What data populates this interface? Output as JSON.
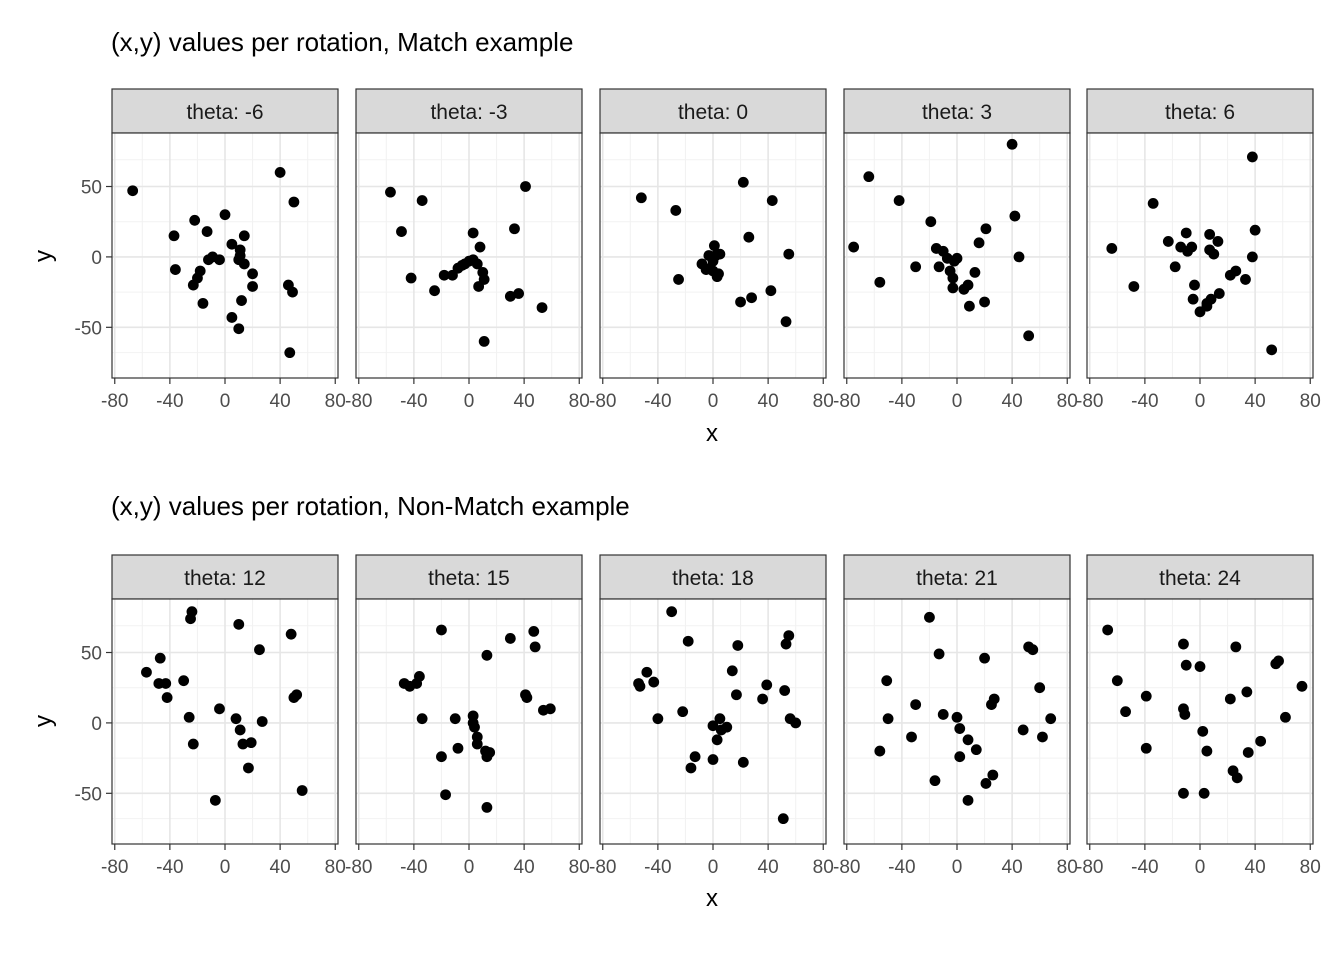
{
  "chart_data": [
    {
      "type": "scatter",
      "title": "(x,y) values per rotation, Match example",
      "xlabel": "x",
      "ylabel": "y",
      "xlim": [
        -82,
        82
      ],
      "ylim": [
        -86,
        88
      ],
      "x_ticks": [
        -80,
        -40,
        0,
        40,
        80
      ],
      "x_tick_labels": [
        "-80",
        "-40",
        "0",
        "40",
        "80"
      ],
      "y_ticks": [
        -50,
        0,
        50
      ],
      "y_tick_labels": [
        "-50",
        "0",
        "50"
      ],
      "grid": true,
      "panels": [
        {
          "label": "theta: -6",
          "points": [
            [
              -67,
              47
            ],
            [
              40,
              60
            ],
            [
              -37,
              15
            ],
            [
              -22,
              26
            ],
            [
              0,
              30
            ],
            [
              50,
              39
            ],
            [
              -13,
              18
            ],
            [
              -36,
              -9
            ],
            [
              -18,
              -10
            ],
            [
              -20,
              -15
            ],
            [
              -23,
              -20
            ],
            [
              -12,
              -2
            ],
            [
              -9,
              0
            ],
            [
              -4,
              -2
            ],
            [
              5,
              9
            ],
            [
              11,
              5
            ],
            [
              11,
              1
            ],
            [
              10,
              -2
            ],
            [
              14,
              15
            ],
            [
              14,
              -5
            ],
            [
              20,
              -12
            ],
            [
              20,
              -21
            ],
            [
              -16,
              -33
            ],
            [
              12,
              -31
            ],
            [
              5,
              -43
            ],
            [
              10,
              -51
            ],
            [
              46,
              -20
            ],
            [
              49,
              -25
            ],
            [
              47,
              -68
            ]
          ]
        },
        {
          "label": "theta: -3",
          "points": [
            [
              -57,
              46
            ],
            [
              -34,
              40
            ],
            [
              -49,
              18
            ],
            [
              -42,
              -15
            ],
            [
              41,
              50
            ],
            [
              33,
              20
            ],
            [
              3,
              17
            ],
            [
              -25,
              -24
            ],
            [
              -18,
              -13
            ],
            [
              -12,
              -13
            ],
            [
              -8,
              -8
            ],
            [
              -5,
              -6
            ],
            [
              -3,
              -5
            ],
            [
              0,
              -3
            ],
            [
              3,
              -2
            ],
            [
              6,
              -5
            ],
            [
              8,
              7
            ],
            [
              10,
              -11
            ],
            [
              11,
              -16
            ],
            [
              7,
              -21
            ],
            [
              30,
              -28
            ],
            [
              36,
              -26
            ],
            [
              53,
              -36
            ],
            [
              11,
              -60
            ]
          ]
        },
        {
          "label": "theta: 0",
          "points": [
            [
              -52,
              42
            ],
            [
              -27,
              33
            ],
            [
              22,
              53
            ],
            [
              43,
              40
            ],
            [
              26,
              14
            ],
            [
              55,
              2
            ],
            [
              -25,
              -16
            ],
            [
              -8,
              -5
            ],
            [
              -5,
              -9
            ],
            [
              -3,
              1
            ],
            [
              0,
              -3
            ],
            [
              1,
              8
            ],
            [
              2,
              1
            ],
            [
              5,
              2
            ],
            [
              4,
              -12
            ],
            [
              3,
              -14
            ],
            [
              0,
              -10
            ],
            [
              -2,
              -8
            ],
            [
              20,
              -32
            ],
            [
              28,
              -29
            ],
            [
              42,
              -24
            ],
            [
              53,
              -46
            ]
          ]
        },
        {
          "label": "theta: 3",
          "points": [
            [
              -64,
              57
            ],
            [
              40,
              80
            ],
            [
              -42,
              40
            ],
            [
              42,
              29
            ],
            [
              -75,
              7
            ],
            [
              -56,
              -18
            ],
            [
              -19,
              25
            ],
            [
              -15,
              6
            ],
            [
              -10,
              4
            ],
            [
              -13,
              -7
            ],
            [
              -30,
              -7
            ],
            [
              -7,
              -1
            ],
            [
              -5,
              -10
            ],
            [
              -2,
              -3
            ],
            [
              0,
              -1
            ],
            [
              -3,
              -15
            ],
            [
              -3,
              -22
            ],
            [
              5,
              -23
            ],
            [
              8,
              -20
            ],
            [
              13,
              -11
            ],
            [
              16,
              10
            ],
            [
              21,
              20
            ],
            [
              45,
              0
            ],
            [
              20,
              -32
            ],
            [
              9,
              -35
            ],
            [
              52,
              -56
            ]
          ]
        },
        {
          "label": "theta: 6",
          "points": [
            [
              38,
              71
            ],
            [
              -34,
              38
            ],
            [
              -64,
              6
            ],
            [
              -48,
              -21
            ],
            [
              -23,
              11
            ],
            [
              -18,
              -7
            ],
            [
              -14,
              7
            ],
            [
              -10,
              17
            ],
            [
              -9,
              4
            ],
            [
              -6,
              7
            ],
            [
              -4,
              -20
            ],
            [
              -5,
              -30
            ],
            [
              7,
              16
            ],
            [
              7,
              5
            ],
            [
              13,
              11
            ],
            [
              10,
              2
            ],
            [
              0,
              -39
            ],
            [
              5,
              -35
            ],
            [
              8,
              -30
            ],
            [
              5,
              -33
            ],
            [
              14,
              -26
            ],
            [
              22,
              -13
            ],
            [
              26,
              -10
            ],
            [
              33,
              -16
            ],
            [
              38,
              0
            ],
            [
              40,
              19
            ],
            [
              52,
              -66
            ]
          ]
        }
      ]
    },
    {
      "type": "scatter",
      "title": "(x,y) values per rotation, Non-Match example",
      "xlabel": "x",
      "ylabel": "y",
      "xlim": [
        -82,
        82
      ],
      "ylim": [
        -86,
        88
      ],
      "x_ticks": [
        -80,
        -40,
        0,
        40,
        80
      ],
      "x_tick_labels": [
        "-80",
        "-40",
        "0",
        "40",
        "80"
      ],
      "y_ticks": [
        -50,
        0,
        50
      ],
      "y_tick_labels": [
        "-50",
        "0",
        "50"
      ],
      "grid": true,
      "panels": [
        {
          "label": "theta: 12",
          "points": [
            [
              -24,
              79
            ],
            [
              -25,
              74
            ],
            [
              -57,
              36
            ],
            [
              -47,
              46
            ],
            [
              -48,
              28
            ],
            [
              -43,
              28
            ],
            [
              -42,
              18
            ],
            [
              -30,
              30
            ],
            [
              -26,
              4
            ],
            [
              -23,
              -15
            ],
            [
              10,
              70
            ],
            [
              25,
              52
            ],
            [
              48,
              63
            ],
            [
              -4,
              10
            ],
            [
              8,
              3
            ],
            [
              11,
              -5
            ],
            [
              13,
              -15
            ],
            [
              19,
              -14
            ],
            [
              27,
              1
            ],
            [
              17,
              -32
            ],
            [
              -7,
              -55
            ],
            [
              50,
              18
            ],
            [
              52,
              20
            ],
            [
              56,
              -48
            ]
          ]
        },
        {
          "label": "theta: 15",
          "points": [
            [
              -20,
              66
            ],
            [
              -47,
              28
            ],
            [
              -43,
              26
            ],
            [
              -38,
              28
            ],
            [
              -36,
              33
            ],
            [
              -34,
              3
            ],
            [
              -10,
              3
            ],
            [
              -8,
              -18
            ],
            [
              -20,
              -24
            ],
            [
              -17,
              -51
            ],
            [
              3,
              5
            ],
            [
              3,
              0
            ],
            [
              4,
              -3
            ],
            [
              6,
              -10
            ],
            [
              6,
              -15
            ],
            [
              12,
              -20
            ],
            [
              13,
              -24
            ],
            [
              15,
              -21
            ],
            [
              13,
              48
            ],
            [
              30,
              60
            ],
            [
              47,
              65
            ],
            [
              48,
              54
            ],
            [
              41,
              20
            ],
            [
              42,
              18
            ],
            [
              54,
              9
            ],
            [
              59,
              10
            ],
            [
              13,
              -60
            ]
          ]
        },
        {
          "label": "theta: 18",
          "points": [
            [
              -30,
              79
            ],
            [
              -18,
              58
            ],
            [
              -48,
              36
            ],
            [
              -54,
              28
            ],
            [
              -53,
              26
            ],
            [
              -43,
              29
            ],
            [
              -40,
              3
            ],
            [
              -22,
              8
            ],
            [
              -13,
              -24
            ],
            [
              -16,
              -32
            ],
            [
              0,
              -2
            ],
            [
              5,
              3
            ],
            [
              6,
              -5
            ],
            [
              3,
              -12
            ],
            [
              0,
              -26
            ],
            [
              10,
              -3
            ],
            [
              14,
              37
            ],
            [
              17,
              20
            ],
            [
              18,
              55
            ],
            [
              22,
              -28
            ],
            [
              36,
              17
            ],
            [
              39,
              27
            ],
            [
              52,
              23
            ],
            [
              53,
              56
            ],
            [
              55,
              62
            ],
            [
              56,
              3
            ],
            [
              60,
              0
            ],
            [
              51,
              -68
            ]
          ]
        },
        {
          "label": "theta: 21",
          "points": [
            [
              -20,
              75
            ],
            [
              -13,
              49
            ],
            [
              -51,
              30
            ],
            [
              -50,
              3
            ],
            [
              -56,
              -20
            ],
            [
              -30,
              13
            ],
            [
              -33,
              -10
            ],
            [
              -16,
              -41
            ],
            [
              -10,
              6
            ],
            [
              0,
              4
            ],
            [
              2,
              -4
            ],
            [
              8,
              -12
            ],
            [
              14,
              -19
            ],
            [
              2,
              -24
            ],
            [
              8,
              -55
            ],
            [
              20,
              46
            ],
            [
              25,
              13
            ],
            [
              27,
              17
            ],
            [
              26,
              -37
            ],
            [
              21,
              -43
            ],
            [
              52,
              54
            ],
            [
              55,
              52
            ],
            [
              60,
              25
            ],
            [
              62,
              -10
            ],
            [
              68,
              3
            ],
            [
              48,
              -5
            ]
          ]
        },
        {
          "label": "theta: 24",
          "points": [
            [
              -67,
              66
            ],
            [
              -60,
              30
            ],
            [
              -54,
              8
            ],
            [
              -39,
              19
            ],
            [
              -39,
              -18
            ],
            [
              -12,
              56
            ],
            [
              -10,
              41
            ],
            [
              -12,
              10
            ],
            [
              -11,
              6
            ],
            [
              0,
              40
            ],
            [
              2,
              -6
            ],
            [
              5,
              -20
            ],
            [
              3,
              -50
            ],
            [
              -12,
              -50
            ],
            [
              22,
              17
            ],
            [
              26,
              54
            ],
            [
              34,
              22
            ],
            [
              35,
              -21
            ],
            [
              24,
              -34
            ],
            [
              27,
              -39
            ],
            [
              44,
              -13
            ],
            [
              55,
              42
            ],
            [
              57,
              44
            ],
            [
              62,
              4
            ],
            [
              74,
              26
            ]
          ]
        }
      ]
    }
  ]
}
